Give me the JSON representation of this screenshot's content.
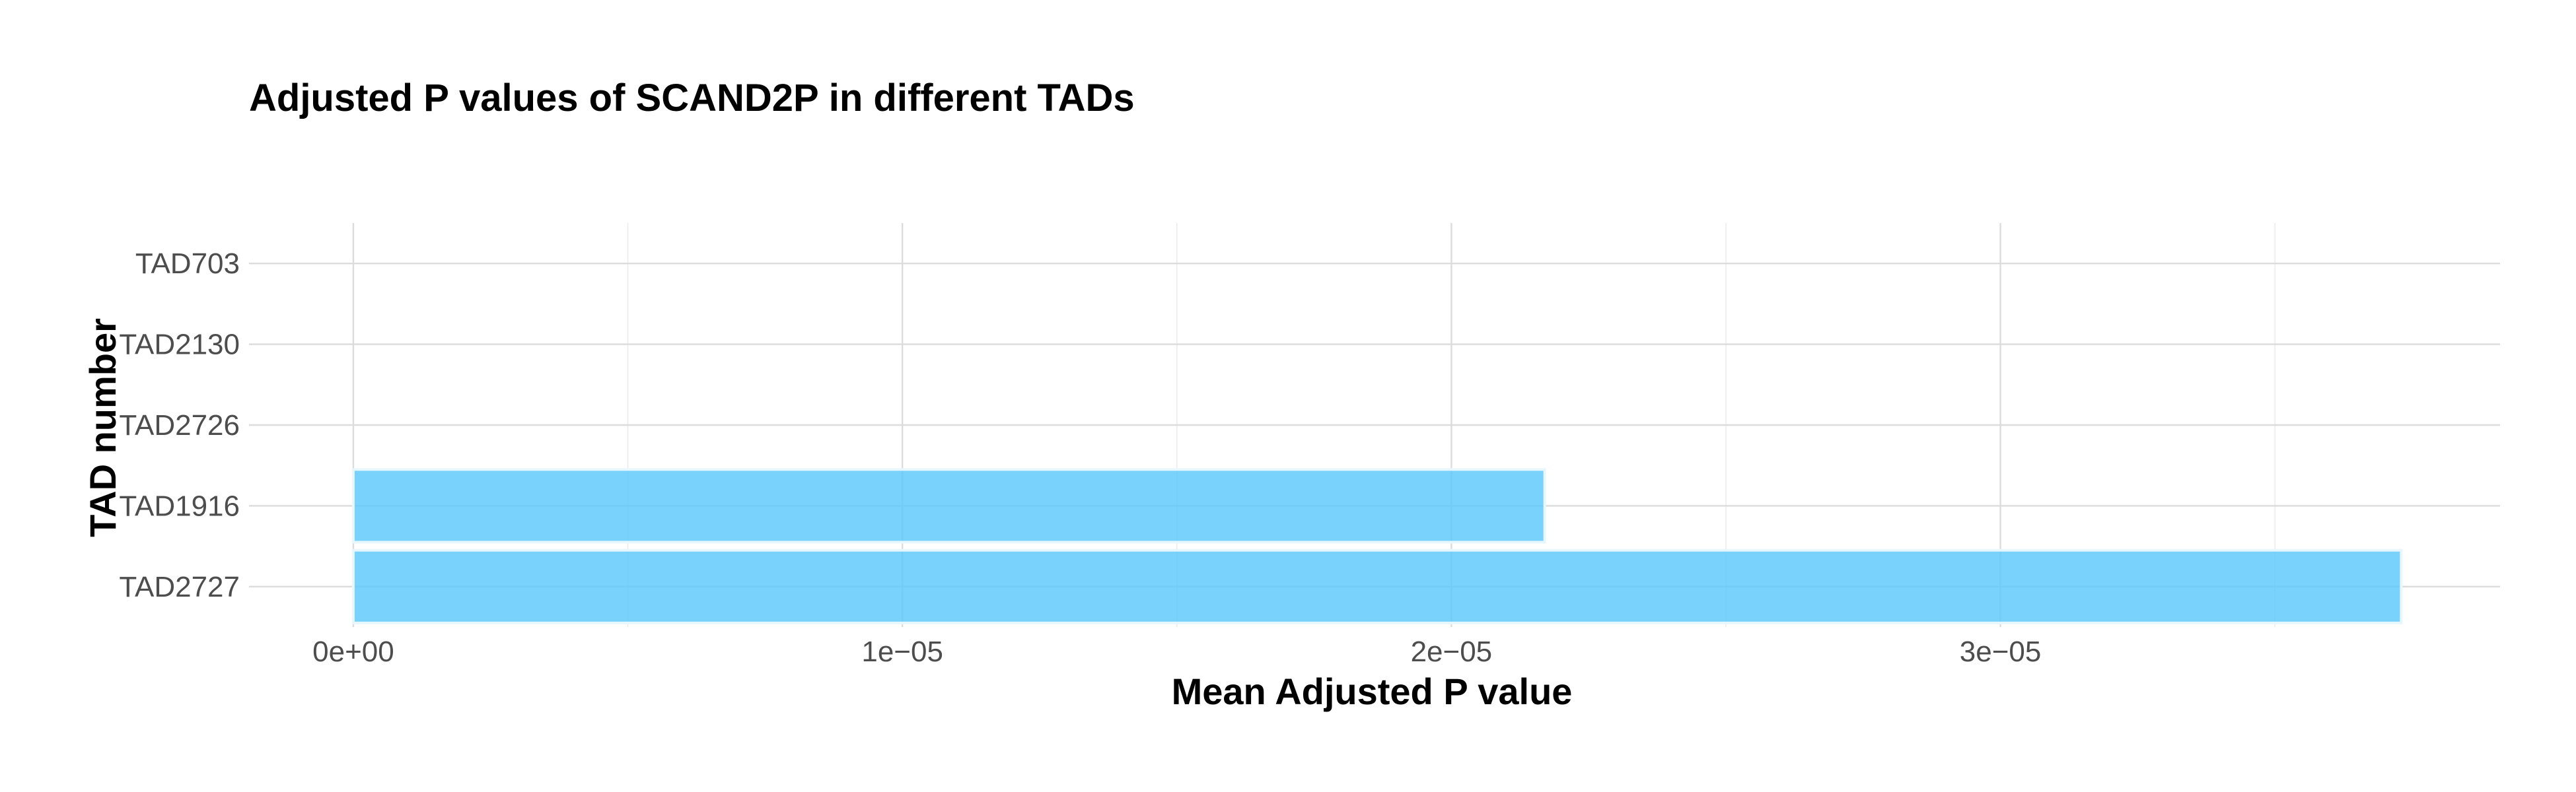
{
  "chart_data": {
    "type": "bar",
    "orientation": "horizontal",
    "title": "Adjusted P values of SCAND2P in different TADs",
    "xlabel": "Mean Adjusted P value",
    "ylabel": "TAD number",
    "categories": [
      "TAD703",
      "TAD2130",
      "TAD2726",
      "TAD1916",
      "TAD2727"
    ],
    "values": [
      0,
      0,
      0,
      2.17e-05,
      3.73e-05
    ],
    "xlim": [
      -1.9e-06,
      3.91e-05
    ],
    "xticks": [
      0,
      1e-05,
      2e-05,
      3e-05
    ],
    "xtick_labels": [
      "0e+00",
      "1e−05",
      "2e−05",
      "3e−05"
    ],
    "grid": true,
    "legend": "none",
    "bar_color": "#5bc8fb",
    "bar_outline_color": "#e8f6fd"
  }
}
